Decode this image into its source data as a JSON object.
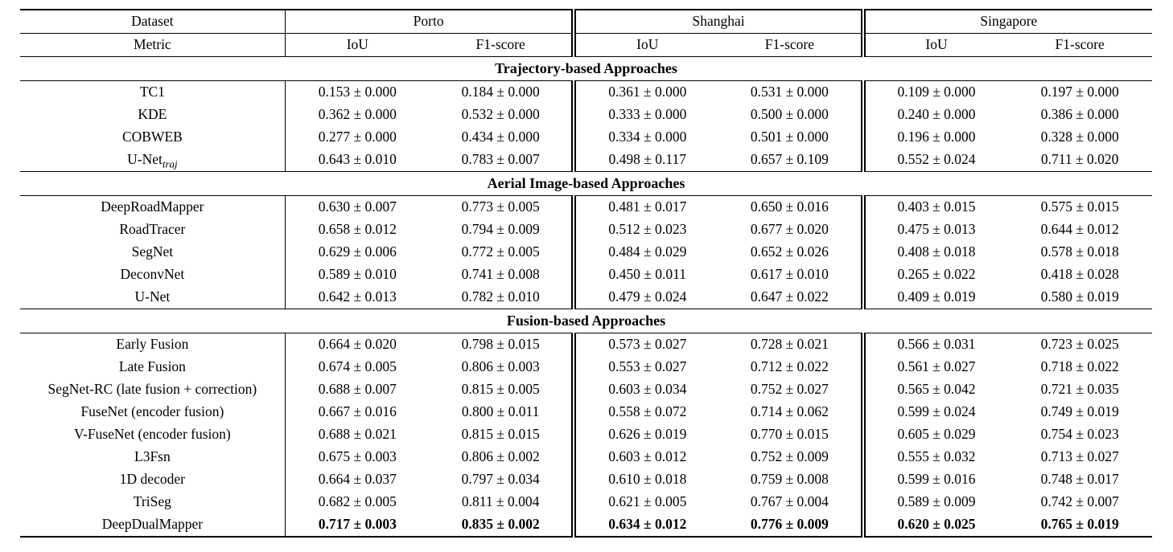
{
  "table": {
    "header": {
      "dataset_label": "Dataset",
      "metric_label": "Metric",
      "datasets": [
        "Porto",
        "Shanghai",
        "Singapore"
      ],
      "metrics": [
        "IoU",
        "F1-score"
      ]
    },
    "sections": [
      {
        "title": "Trajectory-based Approaches",
        "rows": [
          {
            "method": "TC1",
            "values": [
              "0.153 ± 0.000",
              "0.184 ± 0.000",
              "0.361 ± 0.000",
              "0.531 ± 0.000",
              "0.109 ± 0.000",
              "0.197 ± 0.000"
            ]
          },
          {
            "method": "KDE",
            "values": [
              "0.362 ± 0.000",
              "0.532 ± 0.000",
              "0.333 ± 0.000",
              "0.500 ± 0.000",
              "0.240 ± 0.000",
              "0.386 ± 0.000"
            ]
          },
          {
            "method": "COBWEB",
            "values": [
              "0.277 ± 0.000",
              "0.434 ± 0.000",
              "0.334 ± 0.000",
              "0.501 ± 0.000",
              "0.196 ± 0.000",
              "0.328 ± 0.000"
            ]
          },
          {
            "method": "U-Net",
            "method_sub": "traj",
            "values": [
              "0.643 ± 0.010",
              "0.783 ± 0.007",
              "0.498 ± 0.117",
              "0.657 ± 0.109",
              "0.552 ± 0.024",
              "0.711 ± 0.020"
            ]
          }
        ]
      },
      {
        "title": "Aerial Image-based Approaches",
        "rows": [
          {
            "method": "DeepRoadMapper",
            "values": [
              "0.630 ± 0.007",
              "0.773 ± 0.005",
              "0.481 ± 0.017",
              "0.650 ± 0.016",
              "0.403 ± 0.015",
              "0.575 ± 0.015"
            ]
          },
          {
            "method": "RoadTracer",
            "values": [
              "0.658 ± 0.012",
              "0.794 ± 0.009",
              "0.512 ± 0.023",
              "0.677 ± 0.020",
              "0.475 ± 0.013",
              "0.644 ± 0.012"
            ]
          },
          {
            "method": "SegNet",
            "values": [
              "0.629 ± 0.006",
              "0.772 ± 0.005",
              "0.484 ± 0.029",
              "0.652 ± 0.026",
              "0.408 ± 0.018",
              "0.578 ± 0.018"
            ]
          },
          {
            "method": "DeconvNet",
            "values": [
              "0.589 ± 0.010",
              "0.741 ± 0.008",
              "0.450 ± 0.011",
              "0.617 ± 0.010",
              "0.265 ± 0.022",
              "0.418 ± 0.028"
            ]
          },
          {
            "method": "U-Net",
            "values": [
              "0.642 ± 0.013",
              "0.782 ± 0.010",
              "0.479 ± 0.024",
              "0.647 ± 0.022",
              "0.409 ± 0.019",
              "0.580 ± 0.019"
            ]
          }
        ]
      },
      {
        "title": "Fusion-based Approaches",
        "rows": [
          {
            "method": "Early Fusion",
            "values": [
              "0.664 ± 0.020",
              "0.798 ± 0.015",
              "0.573 ± 0.027",
              "0.728 ± 0.021",
              "0.566 ± 0.031",
              "0.723 ± 0.025"
            ]
          },
          {
            "method": "Late Fusion",
            "values": [
              "0.674 ± 0.005",
              "0.806 ± 0.003",
              "0.553 ± 0.027",
              "0.712 ± 0.022",
              "0.561 ± 0.027",
              "0.718 ± 0.022"
            ]
          },
          {
            "method": "SegNet-RC (late fusion + correction)",
            "values": [
              "0.688 ± 0.007",
              "0.815 ± 0.005",
              "0.603 ± 0.034",
              "0.752 ± 0.027",
              "0.565 ± 0.042",
              "0.721 ± 0.035"
            ]
          },
          {
            "method": "FuseNet (encoder fusion)",
            "values": [
              "0.667 ± 0.016",
              "0.800 ± 0.011",
              "0.558 ± 0.072",
              "0.714 ± 0.062",
              "0.599 ± 0.024",
              "0.749 ± 0.019"
            ]
          },
          {
            "method": "V-FuseNet (encoder fusion)",
            "values": [
              "0.688 ± 0.021",
              "0.815 ± 0.015",
              "0.626 ± 0.019",
              "0.770 ± 0.015",
              "0.605 ± 0.029",
              "0.754 ± 0.023"
            ]
          },
          {
            "method": "L3Fsn",
            "values": [
              "0.675 ± 0.003",
              "0.806 ± 0.002",
              "0.603 ± 0.012",
              "0.752 ± 0.009",
              "0.555 ± 0.032",
              "0.713 ± 0.027"
            ]
          },
          {
            "method": "1D decoder",
            "values": [
              "0.664 ± 0.037",
              "0.797 ± 0.034",
              "0.610 ± 0.018",
              "0.759 ± 0.008",
              "0.599 ± 0.016",
              "0.748 ± 0.017"
            ]
          },
          {
            "method": "TriSeg",
            "values": [
              "0.682 ± 0.005",
              "0.811 ± 0.004",
              "0.621 ± 0.005",
              "0.767 ± 0.004",
              "0.589 ± 0.009",
              "0.742 ± 0.007"
            ]
          },
          {
            "method": "DeepDualMapper",
            "bold_values": true,
            "values": [
              "0.717 ± 0.003",
              "0.835 ± 0.002",
              "0.634 ± 0.012",
              "0.776 ± 0.009",
              "0.620 ± 0.025",
              "0.765 ± 0.019"
            ]
          }
        ]
      }
    ]
  }
}
